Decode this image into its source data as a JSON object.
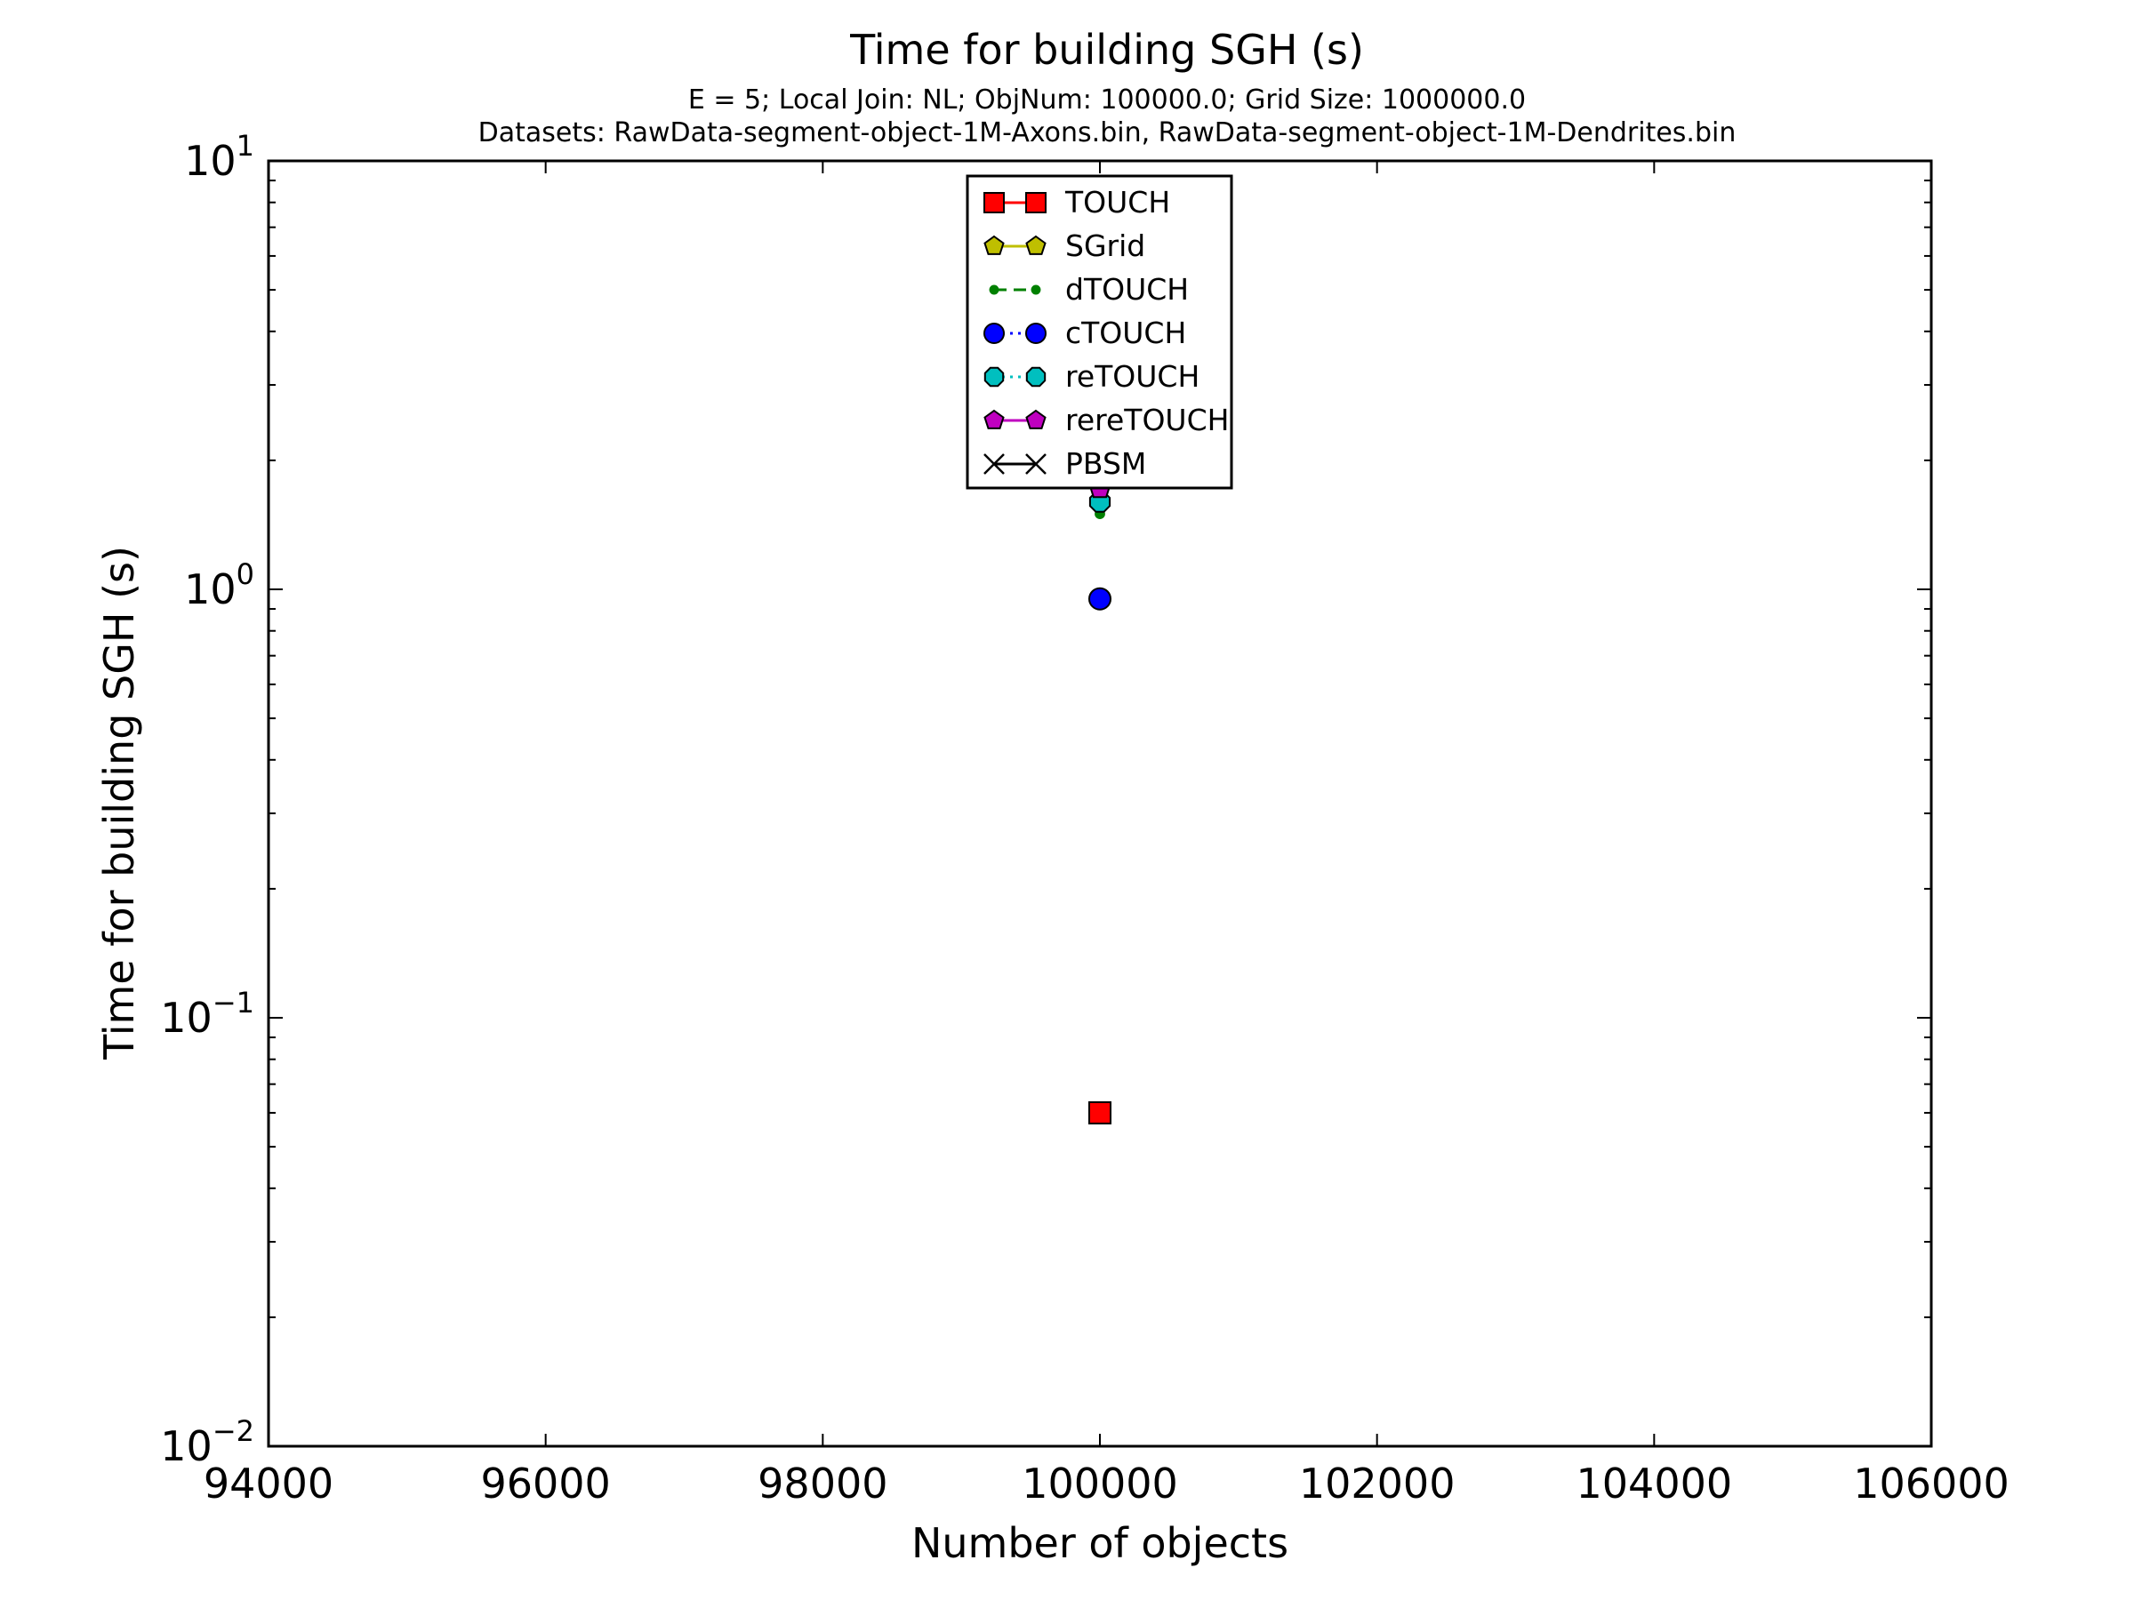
{
  "chart_data": {
    "type": "scatter",
    "title": "Time for building SGH (s)",
    "subtitle_lines": [
      "E = 5; Local Join: NL; ObjNum: 100000.0; Grid Size: 1000000.0",
      "Datasets: RawData-segment-object-1M-Axons.bin, RawData-segment-object-1M-Dendrites.bin"
    ],
    "xlabel": "Number of objects",
    "ylabel": "Time for building SGH (s)",
    "xlim": [
      94000,
      106000
    ],
    "ylim": [
      0.01,
      10
    ],
    "yscale": "log",
    "grid": false,
    "legend_position": "upper center",
    "x_ticks": [
      "94000",
      "96000",
      "98000",
      "100000",
      "102000",
      "104000",
      "106000"
    ],
    "y_tick_labels": [
      {
        "value": 0.01,
        "base": "10",
        "exp": "−2"
      },
      {
        "value": 0.1,
        "base": "10",
        "exp": "−1"
      },
      {
        "value": 1,
        "base": "10",
        "exp": "0"
      },
      {
        "value": 10,
        "base": "10",
        "exp": "1"
      }
    ],
    "series": [
      {
        "name": "TOUCH",
        "x": [
          100000
        ],
        "y": [
          0.06
        ],
        "color": "#ff0000",
        "marker": "square",
        "line": "solid"
      },
      {
        "name": "SGrid",
        "x": [],
        "y": [],
        "color": "#bfbf00",
        "marker": "pentagon",
        "line": "solid"
      },
      {
        "name": "dTOUCH",
        "x": [
          100000
        ],
        "y": [
          1.5
        ],
        "color": "#008000",
        "marker": "dot",
        "line": "dashed"
      },
      {
        "name": "cTOUCH",
        "x": [
          100000
        ],
        "y": [
          0.95
        ],
        "color": "#0000ff",
        "marker": "circle",
        "line": "dotted"
      },
      {
        "name": "reTOUCH",
        "x": [
          100000
        ],
        "y": [
          1.6
        ],
        "color": "#00bfbf",
        "marker": "octagon",
        "line": "dotted"
      },
      {
        "name": "rereTOUCH",
        "x": [
          100000
        ],
        "y": [
          1.72
        ],
        "color": "#bf00bf",
        "marker": "pentagon",
        "line": "solid"
      },
      {
        "name": "PBSM",
        "x": [],
        "y": [],
        "color": "#000000",
        "marker": "x",
        "line": "solid"
      }
    ]
  }
}
